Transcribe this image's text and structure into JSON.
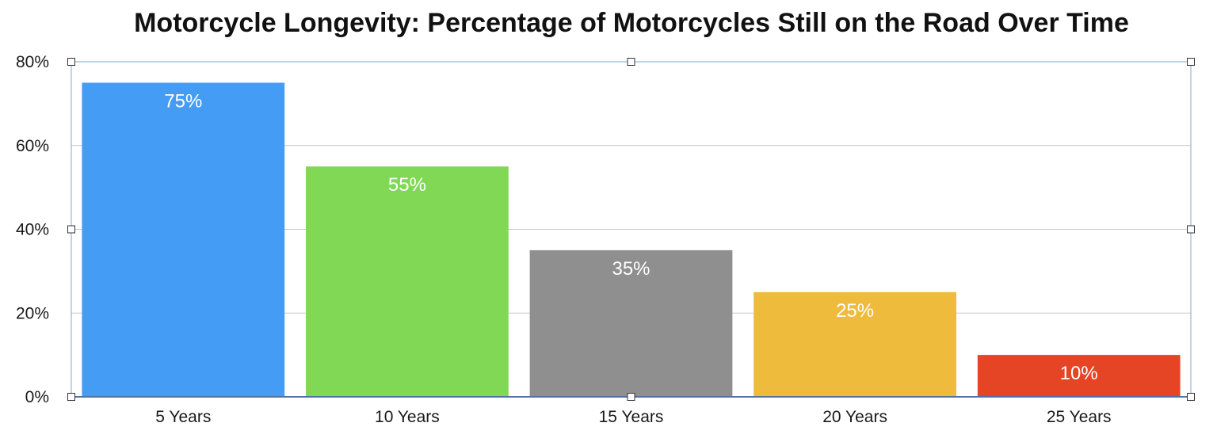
{
  "chart_data": {
    "type": "bar",
    "title": "Motorcycle Longevity: Percentage of Motorcycles Still on the Road Over Time",
    "xlabel": "",
    "ylabel": "",
    "categories": [
      "5 Years",
      "10 Years",
      "15 Years",
      "20 Years",
      "25 Years"
    ],
    "values": [
      75,
      55,
      35,
      25,
      10
    ],
    "data_labels": [
      "75%",
      "55%",
      "35%",
      "25%",
      "10%"
    ],
    "colors": [
      "#459cf4",
      "#81d855",
      "#8f8f8f",
      "#efbb3c",
      "#e54425"
    ],
    "ylim": [
      0,
      80
    ],
    "yticks": [
      0,
      20,
      40,
      60,
      80
    ],
    "ytick_labels": [
      "0%",
      "20%",
      "40%",
      "60%",
      "80%"
    ],
    "grid": true,
    "legend": "none",
    "gridline_color": "#c8c8c8",
    "axis_color": "#1f3f73",
    "frame_color": "#7fa7d6"
  }
}
